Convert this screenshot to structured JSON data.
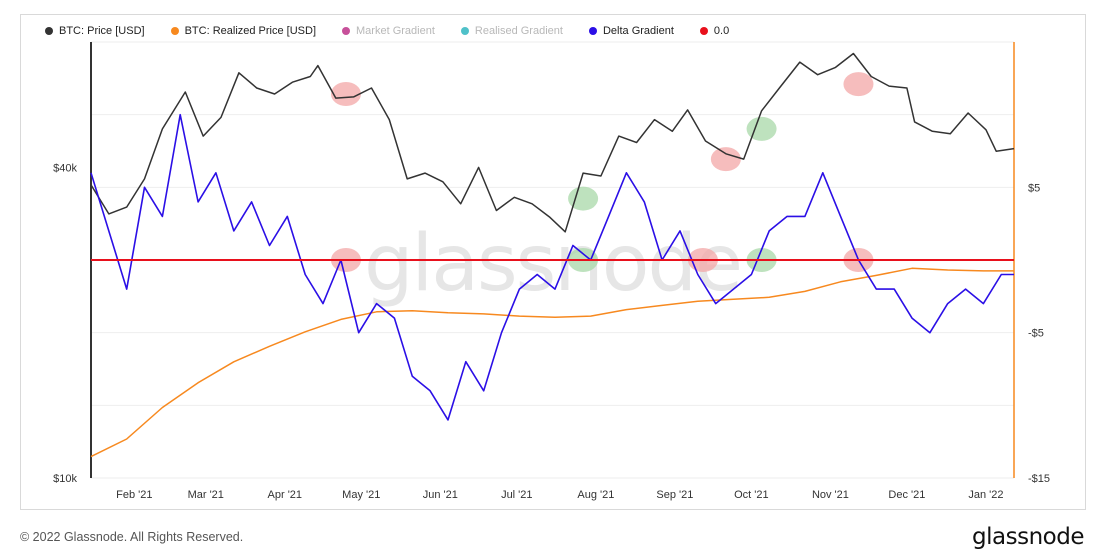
{
  "legend": [
    {
      "label": "BTC: Price [USD]",
      "color": "#333333",
      "muted": false
    },
    {
      "label": "BTC: Realized Price [USD]",
      "color": "#f7891f",
      "muted": false
    },
    {
      "label": "Market Gradient",
      "color": "#c7509a",
      "muted": true
    },
    {
      "label": "Realised Gradient",
      "color": "#4fc1c9",
      "muted": true
    },
    {
      "label": "Delta Gradient",
      "color": "#2b0fe6",
      "muted": false
    },
    {
      "label": "0.0",
      "color": "#e8101c",
      "muted": false
    }
  ],
  "footer": {
    "copyright": "© 2022 Glassnode. All Rights Reserved.",
    "logo": "glassnode"
  },
  "watermark": "glassnode",
  "chart_data": {
    "type": "line",
    "x_tick_labels": [
      "Feb '21",
      "Mar '21",
      "Apr '21",
      "May '21",
      "Jun '21",
      "Jul '21",
      "Aug '21",
      "Sep '21",
      "Oct '21",
      "Nov '21",
      "Dec '21",
      "Jan '22"
    ],
    "x_range": [
      "2021-01-15",
      "2022-01-12"
    ],
    "y_left": {
      "scale": "log",
      "range": [
        10000,
        70000
      ],
      "tick_labels": [
        "$40k",
        "$10k"
      ]
    },
    "y_right": {
      "range": [
        -15,
        15
      ],
      "tick_labels": [
        "$5",
        "-$5",
        "-$15"
      ]
    },
    "grid": true,
    "zero_line": 0.0,
    "series": [
      {
        "name": "BTC: Price [USD]",
        "axis": "left",
        "color": "#333333",
        "x": [
          "2021-01-15",
          "2021-01-22",
          "2021-01-29",
          "2021-02-05",
          "2021-02-12",
          "2021-02-21",
          "2021-02-28",
          "2021-03-07",
          "2021-03-14",
          "2021-03-21",
          "2021-03-28",
          "2021-04-04",
          "2021-04-11",
          "2021-04-14",
          "2021-04-21",
          "2021-04-28",
          "2021-05-05",
          "2021-05-12",
          "2021-05-19",
          "2021-05-26",
          "2021-06-02",
          "2021-06-09",
          "2021-06-16",
          "2021-06-23",
          "2021-06-30",
          "2021-07-07",
          "2021-07-14",
          "2021-07-20",
          "2021-07-27",
          "2021-08-03",
          "2021-08-10",
          "2021-08-17",
          "2021-08-24",
          "2021-08-31",
          "2021-09-06",
          "2021-09-13",
          "2021-09-21",
          "2021-09-28",
          "2021-10-05",
          "2021-10-12",
          "2021-10-20",
          "2021-10-27",
          "2021-11-03",
          "2021-11-10",
          "2021-11-17",
          "2021-11-24",
          "2021-12-01",
          "2021-12-04",
          "2021-12-11",
          "2021-12-18",
          "2021-12-25",
          "2022-01-01",
          "2022-01-05",
          "2022-01-12"
        ],
        "y": [
          37000,
          32500,
          33500,
          38000,
          47500,
          56000,
          46000,
          50000,
          61000,
          57000,
          55500,
          58500,
          60000,
          63000,
          54500,
          54800,
          57000,
          49500,
          38000,
          39000,
          37500,
          34000,
          40000,
          33000,
          35000,
          34000,
          32000,
          30000,
          39000,
          38500,
          46000,
          44700,
          49500,
          47000,
          51700,
          45000,
          42500,
          41500,
          51500,
          57000,
          64000,
          60500,
          62500,
          66500,
          60000,
          57500,
          57000,
          49000,
          47000,
          46500,
          51000,
          47300,
          43000,
          43500
        ]
      },
      {
        "name": "BTC: Realized Price [USD]",
        "axis": "left",
        "color": "#f7891f",
        "x": [
          "2021-01-15",
          "2021-01-29",
          "2021-02-12",
          "2021-02-26",
          "2021-03-12",
          "2021-03-26",
          "2021-04-09",
          "2021-04-23",
          "2021-05-07",
          "2021-05-21",
          "2021-06-04",
          "2021-06-18",
          "2021-07-02",
          "2021-07-16",
          "2021-07-30",
          "2021-08-13",
          "2021-08-27",
          "2021-09-10",
          "2021-09-24",
          "2021-10-08",
          "2021-10-22",
          "2021-11-05",
          "2021-11-19",
          "2021-12-03",
          "2021-12-17",
          "2021-12-31",
          "2022-01-12"
        ],
        "y": [
          11000,
          11900,
          13700,
          15300,
          16800,
          18000,
          19200,
          20300,
          21000,
          21100,
          20900,
          20800,
          20600,
          20500,
          20600,
          21200,
          21600,
          22000,
          22200,
          22400,
          23000,
          24000,
          24700,
          25500,
          25300,
          25200,
          25200
        ]
      },
      {
        "name": "Delta Gradient",
        "axis": "right",
        "color": "#2b0fe6",
        "x": [
          "2021-01-15",
          "2021-01-22",
          "2021-01-29",
          "2021-02-05",
          "2021-02-12",
          "2021-02-19",
          "2021-02-26",
          "2021-03-05",
          "2021-03-12",
          "2021-03-19",
          "2021-03-26",
          "2021-04-02",
          "2021-04-09",
          "2021-04-16",
          "2021-04-23",
          "2021-04-30",
          "2021-05-07",
          "2021-05-14",
          "2021-05-21",
          "2021-05-28",
          "2021-06-04",
          "2021-06-11",
          "2021-06-18",
          "2021-06-25",
          "2021-07-02",
          "2021-07-09",
          "2021-07-16",
          "2021-07-23",
          "2021-07-30",
          "2021-08-06",
          "2021-08-13",
          "2021-08-20",
          "2021-08-27",
          "2021-09-03",
          "2021-09-10",
          "2021-09-17",
          "2021-09-24",
          "2021-10-01",
          "2021-10-08",
          "2021-10-15",
          "2021-10-22",
          "2021-10-29",
          "2021-11-05",
          "2021-11-12",
          "2021-11-19",
          "2021-11-26",
          "2021-12-03",
          "2021-12-10",
          "2021-12-17",
          "2021-12-24",
          "2021-12-31",
          "2022-01-07",
          "2022-01-12"
        ],
        "y": [
          6,
          2,
          -2,
          5,
          3,
          10,
          4,
          6,
          2,
          4,
          1,
          3,
          -1,
          -3,
          0,
          -5,
          -3,
          -4,
          -8,
          -9,
          -11,
          -7,
          -9,
          -5,
          -2,
          -1,
          -2,
          1,
          0,
          3,
          6,
          4,
          0,
          2,
          -1,
          -3,
          -2,
          -1,
          2,
          3,
          3,
          6,
          3,
          0,
          -2,
          -2,
          -4,
          -5,
          -3,
          -2,
          -3,
          -1,
          -1
        ]
      }
    ]
  }
}
